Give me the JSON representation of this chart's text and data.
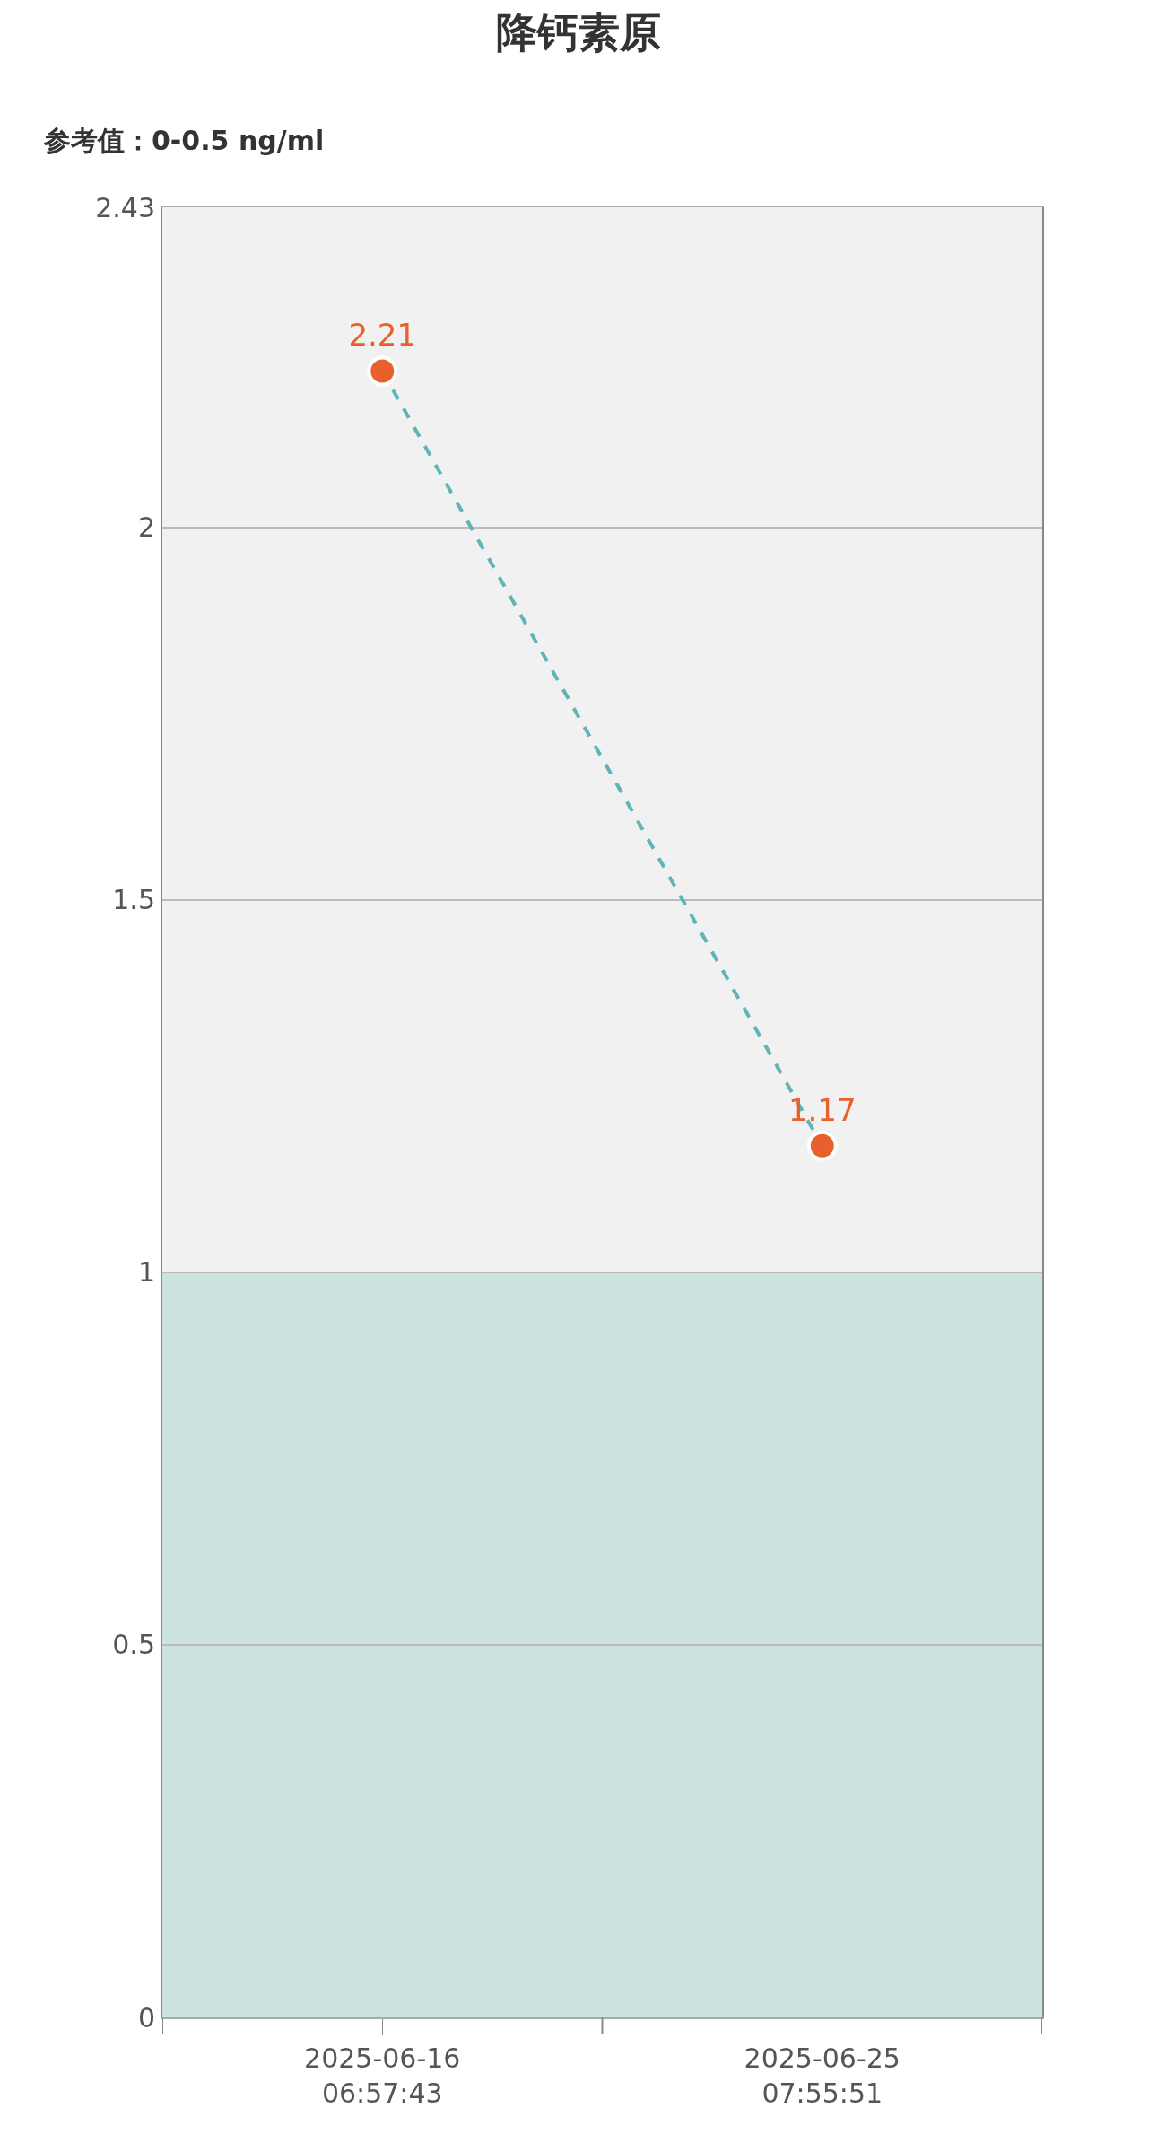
{
  "chart_data": {
    "type": "line",
    "title": "降钙素原",
    "subtitle": "参考值：0-0.5 ng/ml",
    "categories": [
      "2025-06-16 06:57:43",
      "2025-06-25 07:55:51"
    ],
    "series": [
      {
        "color": "#5fb5b5",
        "colors": [
          "#e8612c",
          "#e8612c"
        ],
        "values": [
          2.21,
          1.17
        ]
      }
    ],
    "ylim": [
      0,
      2.43
    ],
    "yticks": [
      0,
      0.5,
      1,
      1.5,
      2,
      2.43
    ],
    "bands": [
      {
        "axis": "y",
        "from": 0,
        "to": 1,
        "color": "#cce3df"
      },
      {
        "axis": "y",
        "from": 1,
        "to": 2.43,
        "color": "#f1f1f1"
      }
    ],
    "grid": true,
    "marker": "circle",
    "line_style": "dashed",
    "data_labels": true,
    "legend": false
  }
}
